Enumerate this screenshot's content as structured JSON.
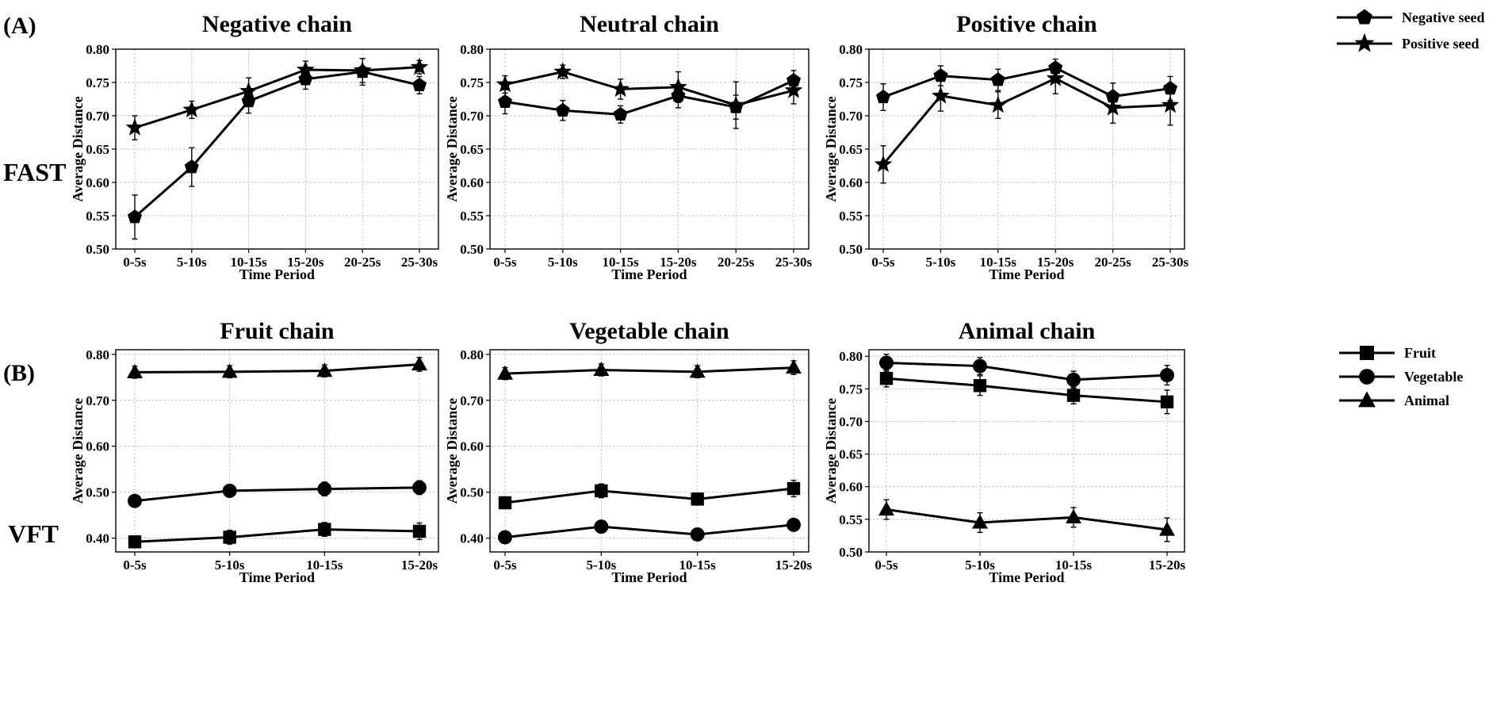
{
  "figure": {
    "panel_a_label": "(A)",
    "panel_b_label": "(B)",
    "row_a_label": "FAST",
    "row_b_label": "VFT"
  },
  "legends": {
    "a": [
      {
        "label": "Negative seed",
        "marker": "pentagon"
      },
      {
        "label": "Positive seed",
        "marker": "star"
      }
    ],
    "b": [
      {
        "label": "Fruit",
        "marker": "square"
      },
      {
        "label": "Vegetable",
        "marker": "circle"
      },
      {
        "label": "Animal",
        "marker": "triangle"
      }
    ]
  },
  "colors": {
    "line": "#000000",
    "grid": "#c4c4c4",
    "background": "#ffffff"
  },
  "chart_data": [
    {
      "type": "line",
      "panel": "A",
      "title": "Negative chain",
      "xlabel": "Time Period",
      "ylabel": "Average Distance",
      "categories": [
        "0-5s",
        "5-10s",
        "10-15s",
        "15-20s",
        "20-25s",
        "25-30s"
      ],
      "ylim": [
        0.5,
        0.8
      ],
      "yticks": [
        "0.50",
        "0.55",
        "0.60",
        "0.65",
        "0.70",
        "0.75",
        "0.80"
      ],
      "grid": true,
      "series": [
        {
          "name": "Negative seed",
          "marker": "pentagon",
          "values": [
            0.548,
            0.623,
            0.722,
            0.755,
            0.766,
            0.746
          ],
          "errors": [
            0.033,
            0.029,
            0.018,
            0.015,
            0.02,
            0.013
          ]
        },
        {
          "name": "Positive seed",
          "marker": "star",
          "values": [
            0.682,
            0.709,
            0.737,
            0.769,
            0.768,
            0.773
          ],
          "errors": [
            0.018,
            0.013,
            0.02,
            0.013,
            0.018,
            0.01
          ]
        }
      ]
    },
    {
      "type": "line",
      "panel": "A",
      "title": "Neutral chain",
      "xlabel": "Time Period",
      "ylabel": "Average Distance",
      "categories": [
        "0-5s",
        "5-10s",
        "10-15s",
        "15-20s",
        "20-25s",
        "25-30s"
      ],
      "ylim": [
        0.5,
        0.8
      ],
      "yticks": [
        "0.50",
        "0.55",
        "0.60",
        "0.65",
        "0.70",
        "0.75",
        "0.80"
      ],
      "grid": true,
      "series": [
        {
          "name": "Negative seed",
          "marker": "pentagon",
          "values": [
            0.721,
            0.708,
            0.702,
            0.73,
            0.713,
            0.753
          ],
          "errors": [
            0.018,
            0.015,
            0.013,
            0.018,
            0.018,
            0.015
          ]
        },
        {
          "name": "Positive seed",
          "marker": "star",
          "values": [
            0.747,
            0.766,
            0.74,
            0.743,
            0.716,
            0.738
          ],
          "errors": [
            0.013,
            0.01,
            0.015,
            0.023,
            0.035,
            0.02
          ]
        }
      ]
    },
    {
      "type": "line",
      "panel": "A",
      "title": "Positive chain",
      "xlabel": "Time Period",
      "ylabel": "Average Distance",
      "categories": [
        "0-5s",
        "5-10s",
        "10-15s",
        "15-20s",
        "20-25s",
        "25-30s"
      ],
      "ylim": [
        0.5,
        0.8
      ],
      "yticks": [
        "0.50",
        "0.55",
        "0.60",
        "0.65",
        "0.70",
        "0.75",
        "0.80"
      ],
      "grid": true,
      "series": [
        {
          "name": "Negative seed",
          "marker": "pentagon",
          "values": [
            0.728,
            0.76,
            0.754,
            0.772,
            0.729,
            0.741
          ],
          "errors": [
            0.02,
            0.015,
            0.016,
            0.013,
            0.02,
            0.018
          ]
        },
        {
          "name": "Positive seed",
          "marker": "star",
          "values": [
            0.627,
            0.73,
            0.716,
            0.756,
            0.712,
            0.716
          ],
          "errors": [
            0.028,
            0.023,
            0.02,
            0.023,
            0.023,
            0.03
          ]
        }
      ]
    },
    {
      "type": "line",
      "panel": "B",
      "title": "Fruit chain",
      "xlabel": "Time Period",
      "ylabel": "Average Distance",
      "categories": [
        "0-5s",
        "5-10s",
        "10-15s",
        "15-20s"
      ],
      "ylim": [
        0.37,
        0.81
      ],
      "yticks": [
        "0.40",
        "0.50",
        "0.60",
        "0.70",
        "0.80"
      ],
      "grid": true,
      "series": [
        {
          "name": "Fruit",
          "marker": "square",
          "values": [
            0.392,
            0.402,
            0.419,
            0.415
          ],
          "errors": [
            0.013,
            0.015,
            0.015,
            0.018
          ]
        },
        {
          "name": "Vegetable",
          "marker": "circle",
          "values": [
            0.481,
            0.503,
            0.507,
            0.51
          ],
          "errors": [
            0.013,
            0.013,
            0.015,
            0.015
          ]
        },
        {
          "name": "Animal",
          "marker": "triangle",
          "values": [
            0.761,
            0.762,
            0.764,
            0.778
          ],
          "errors": [
            0.013,
            0.013,
            0.013,
            0.015
          ]
        }
      ]
    },
    {
      "type": "line",
      "panel": "B",
      "title": "Vegetable chain",
      "xlabel": "Time Period",
      "ylabel": "Average Distance",
      "categories": [
        "0-5s",
        "5-10s",
        "10-15s",
        "15-20s"
      ],
      "ylim": [
        0.37,
        0.81
      ],
      "yticks": [
        "0.40",
        "0.50",
        "0.60",
        "0.70",
        "0.80"
      ],
      "grid": true,
      "series": [
        {
          "name": "Fruit",
          "marker": "square",
          "values": [
            0.477,
            0.503,
            0.485,
            0.508
          ],
          "errors": [
            0.013,
            0.015,
            0.013,
            0.018
          ]
        },
        {
          "name": "Vegetable",
          "marker": "circle",
          "values": [
            0.402,
            0.425,
            0.408,
            0.429
          ],
          "errors": [
            0.01,
            0.013,
            0.013,
            0.013
          ]
        },
        {
          "name": "Animal",
          "marker": "triangle",
          "values": [
            0.758,
            0.766,
            0.762,
            0.771
          ],
          "errors": [
            0.013,
            0.013,
            0.013,
            0.015
          ]
        }
      ]
    },
    {
      "type": "line",
      "panel": "B",
      "title": "Animal chain",
      "xlabel": "Time Period",
      "ylabel": "Average Distance",
      "categories": [
        "0-5s",
        "5-10s",
        "10-15s",
        "15-20s"
      ],
      "ylim": [
        0.5,
        0.81
      ],
      "yticks": [
        "0.50",
        "0.55",
        "0.60",
        "0.65",
        "0.70",
        "0.75",
        "0.80"
      ],
      "grid": true,
      "series": [
        {
          "name": "Fruit",
          "marker": "square",
          "values": [
            0.766,
            0.755,
            0.74,
            0.73
          ],
          "errors": [
            0.013,
            0.015,
            0.013,
            0.018
          ]
        },
        {
          "name": "Vegetable",
          "marker": "circle",
          "values": [
            0.79,
            0.785,
            0.764,
            0.771
          ],
          "errors": [
            0.013,
            0.013,
            0.013,
            0.015
          ]
        },
        {
          "name": "Animal",
          "marker": "triangle",
          "values": [
            0.565,
            0.545,
            0.553,
            0.534
          ],
          "errors": [
            0.015,
            0.015,
            0.015,
            0.018
          ]
        }
      ]
    }
  ]
}
